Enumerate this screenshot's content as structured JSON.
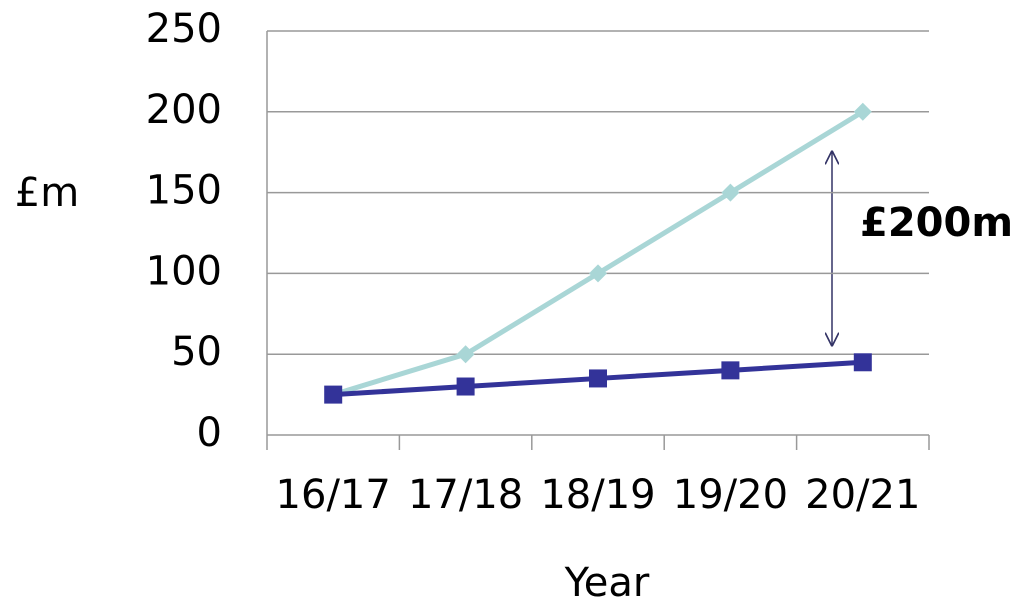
{
  "chart_data": {
    "type": "line",
    "y_label": "£m",
    "x_label": "Year",
    "annotation": "£200m",
    "categories": [
      "16/17",
      "17/18",
      "18/19",
      "19/20",
      "20/21"
    ],
    "series": [
      {
        "color": "#a9d6d6",
        "marker": "diamond",
        "values": [
          25,
          50,
          100,
          150,
          200
        ]
      },
      {
        "color": "#333399",
        "marker": "square",
        "values": [
          25,
          30,
          35,
          40,
          45
        ]
      }
    ],
    "ylim": [
      0,
      250
    ],
    "yticks": [
      0,
      50,
      100,
      150,
      200,
      250
    ],
    "grid": true
  }
}
